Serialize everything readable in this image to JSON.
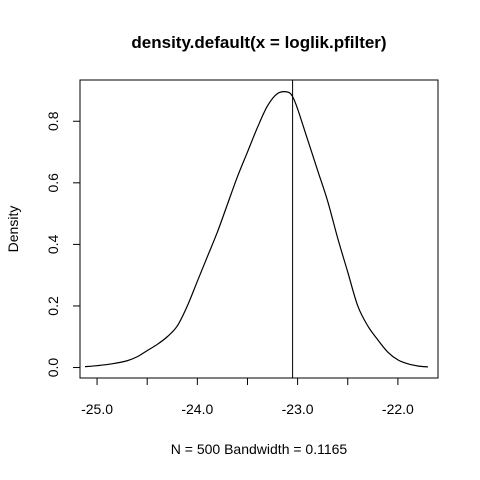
{
  "chart_data": {
    "type": "line",
    "title": "density.default(x = loglik.pfilter)",
    "xlabel": "N = 500   Bandwidth = 0.1165",
    "ylabel": "Density",
    "xlim": [
      -25.17,
      -21.6
    ],
    "ylim": [
      -0.034,
      0.934
    ],
    "x_ticks": [
      -25.0,
      -24.5,
      -24.0,
      -23.5,
      -23.0,
      -22.5,
      -22.0
    ],
    "x_tick_labels": [
      {
        "value": -25.0,
        "label": "-25.0"
      },
      {
        "value": -24.0,
        "label": "-24.0"
      },
      {
        "value": -23.0,
        "label": "-23.0"
      },
      {
        "value": -22.0,
        "label": "-22.0"
      }
    ],
    "y_ticks": [
      {
        "value": 0.0,
        "label": "0.0"
      },
      {
        "value": 0.2,
        "label": "0.2"
      },
      {
        "value": 0.4,
        "label": "0.4"
      },
      {
        "value": 0.6,
        "label": "0.6"
      },
      {
        "value": 0.8,
        "label": "0.8"
      }
    ],
    "vertical_line_x": -23.05,
    "grid": false,
    "line_color": "#000000",
    "series": [
      {
        "x": [
          -25.12,
          -25.0,
          -24.85,
          -24.7,
          -24.6,
          -24.5,
          -24.4,
          -24.3,
          -24.2,
          -24.1,
          -24.0,
          -23.9,
          -23.8,
          -23.7,
          -23.6,
          -23.5,
          -23.4,
          -23.3,
          -23.2,
          -23.1,
          -23.05,
          -23.0,
          -22.9,
          -22.8,
          -22.7,
          -22.6,
          -22.5,
          -22.4,
          -22.3,
          -22.2,
          -22.1,
          -22.0,
          -21.9,
          -21.8,
          -21.7
        ],
        "y": [
          0.003,
          0.006,
          0.012,
          0.022,
          0.035,
          0.055,
          0.075,
          0.1,
          0.135,
          0.2,
          0.28,
          0.36,
          0.44,
          0.53,
          0.62,
          0.7,
          0.78,
          0.85,
          0.89,
          0.895,
          0.88,
          0.84,
          0.74,
          0.64,
          0.54,
          0.42,
          0.31,
          0.2,
          0.135,
          0.09,
          0.05,
          0.025,
          0.012,
          0.005,
          0.002
        ]
      }
    ]
  }
}
